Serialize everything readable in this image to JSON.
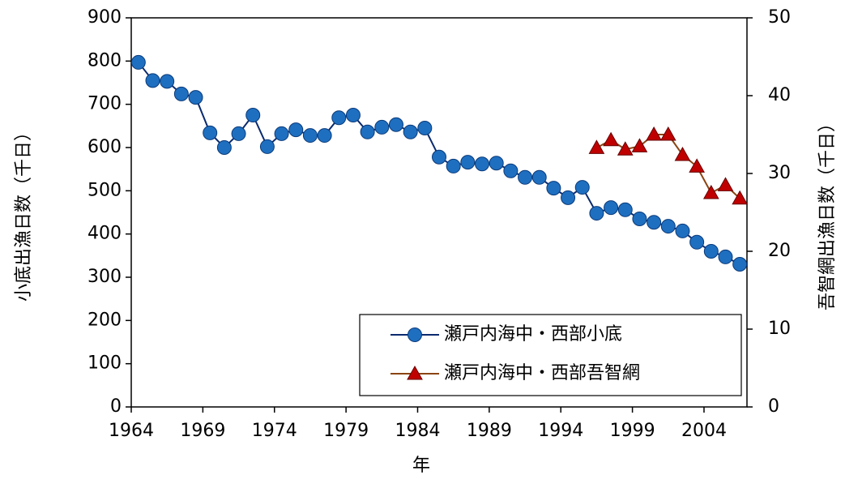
{
  "chart_data": {
    "type": "line",
    "xlabel": "年",
    "ylabel": "小底出漁日数（千日）",
    "y2label": "吾智網出漁日数（千日）",
    "categories": [
      "1964",
      null,
      null,
      null,
      null,
      "1969",
      null,
      null,
      null,
      null,
      "1974",
      null,
      null,
      null,
      null,
      "1979",
      null,
      null,
      null,
      null,
      "1984",
      null,
      null,
      null,
      null,
      "1989",
      null,
      null,
      null,
      null,
      "1994",
      null,
      null,
      null,
      null,
      "1999",
      null,
      null,
      null,
      null,
      "2004",
      null,
      null
    ],
    "series": [
      {
        "name": "瀬戸内海中・西部小底",
        "color": "#1f6fc0",
        "line_color": "#0a2a6e",
        "marker": "circle",
        "values": [
          797,
          755,
          753,
          724,
          716,
          634,
          600,
          632,
          675,
          602,
          632,
          641,
          628,
          628,
          669,
          675,
          636,
          647,
          653,
          636,
          645,
          578,
          557,
          566,
          562,
          564,
          546,
          531,
          531,
          506,
          484,
          508,
          448,
          461,
          456,
          435,
          427,
          418,
          407,
          381,
          360,
          347,
          330
        ]
      },
      {
        "name": "瀬戸内海中・西部吾智網",
        "color": "#c00000",
        "line_color": "#8b4513",
        "marker": "triangle",
        "axis": "y2",
        "values": [
          null,
          null,
          null,
          null,
          null,
          null,
          null,
          null,
          null,
          null,
          null,
          null,
          null,
          null,
          null,
          null,
          null,
          null,
          null,
          null,
          null,
          null,
          null,
          null,
          null,
          null,
          null,
          null,
          null,
          null,
          null,
          null,
          33.3,
          34.3,
          33.1,
          33.5,
          35.0,
          35.0,
          32.4,
          30.9,
          27.5,
          28.5,
          26.8
        ]
      }
    ],
    "ylim": [
      0,
      900
    ],
    "yticks": [
      0,
      100,
      200,
      300,
      400,
      500,
      600,
      700,
      800,
      900
    ],
    "y2lim": [
      0,
      50
    ],
    "y2ticks": [
      0,
      10,
      20,
      30,
      40,
      50
    ],
    "grid": false,
    "legend": "lower right"
  }
}
